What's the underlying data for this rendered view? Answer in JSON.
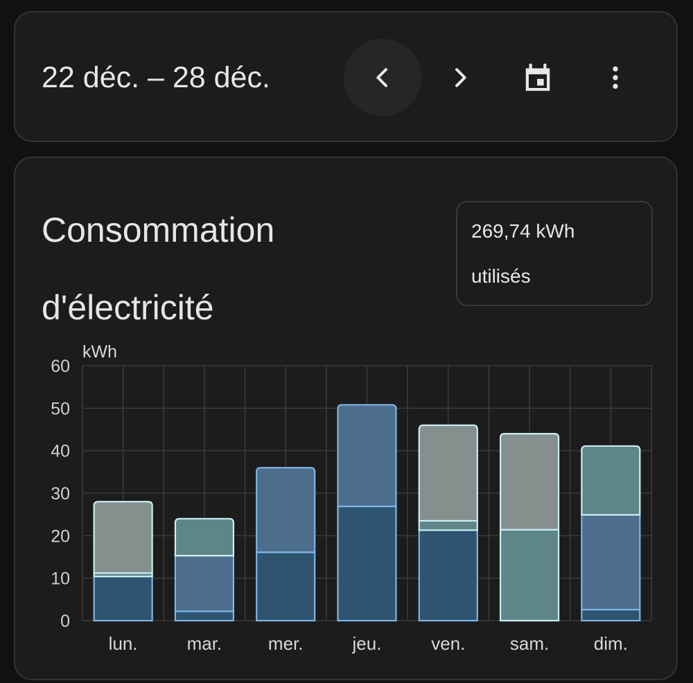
{
  "header": {
    "date_range": "22 déc. – 28 déc.",
    "buttons": {
      "prev": "chevron-left-icon",
      "next": "chevron-right-icon",
      "calendar": "calendar-icon",
      "more": "more-vertical-icon"
    }
  },
  "card": {
    "title": "Consommation d'électricité",
    "total_value": "269,74 kWh",
    "total_label": "utilisés"
  },
  "colors": {
    "background": "#111111",
    "card": "#1c1c1c",
    "grid": "#3b3b3b",
    "seg_dark": "#2f5470",
    "seg_mid": "#4d6d8c",
    "seg_teal": "#5e8589",
    "seg_grey": "#858f8d",
    "border_blue": "#7fb6e3",
    "border_light": "#cdeef3"
  },
  "chart_data": {
    "type": "bar",
    "stacked": true,
    "ylabel": "kWh",
    "ylim": [
      0,
      60
    ],
    "yticks": [
      0,
      10,
      20,
      30,
      40,
      50,
      60
    ],
    "grid": true,
    "categories": [
      "lun.",
      "mar.",
      "mer.",
      "jeu.",
      "ven.",
      "sam.",
      "dim."
    ],
    "bars": [
      {
        "segments": [
          {
            "value": 10.4,
            "tone": "dark"
          },
          {
            "value": 0.8,
            "tone": "teal"
          },
          {
            "value": 16.8,
            "tone": "grey"
          }
        ]
      },
      {
        "segments": [
          {
            "value": 2.2,
            "tone": "dark"
          },
          {
            "value": 13.1,
            "tone": "mid"
          },
          {
            "value": 8.7,
            "tone": "teal"
          }
        ]
      },
      {
        "segments": [
          {
            "value": 16.1,
            "tone": "dark"
          },
          {
            "value": 19.9,
            "tone": "mid"
          }
        ]
      },
      {
        "segments": [
          {
            "value": 26.9,
            "tone": "dark"
          },
          {
            "value": 23.9,
            "tone": "mid"
          }
        ]
      },
      {
        "segments": [
          {
            "value": 21.3,
            "tone": "dark"
          },
          {
            "value": 2.2,
            "tone": "teal"
          },
          {
            "value": 22.5,
            "tone": "grey"
          }
        ]
      },
      {
        "segments": [
          {
            "value": 21.4,
            "tone": "teal"
          },
          {
            "value": 22.6,
            "tone": "grey"
          }
        ]
      },
      {
        "segments": [
          {
            "value": 2.6,
            "tone": "dark"
          },
          {
            "value": 22.3,
            "tone": "mid"
          },
          {
            "value": 16.2,
            "tone": "teal"
          }
        ]
      }
    ]
  }
}
